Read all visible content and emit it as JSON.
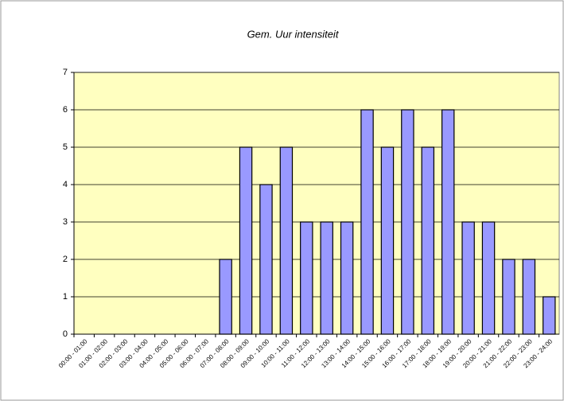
{
  "chart_data": {
    "type": "bar",
    "title": "Gem. Uur intensiteit",
    "categories": [
      "00:00 - 01:00",
      "01:00 - 02:00",
      "02:00 - 03:00",
      "03:00 - 04:00",
      "04:00 - 05:00",
      "05:00 - 06:00",
      "06:00 - 07:00",
      "07:00 - 08:00",
      "08:00 - 09:00",
      "09:00 - 10:00",
      "10:00 - 11:00",
      "11:00 - 12:00",
      "12:00 - 13:00",
      "13:00 - 14:00",
      "14:00 - 15:00",
      "15:00 - 16:00",
      "16:00 - 17:00",
      "17:00 - 18:00",
      "18:00 - 19:00",
      "19:00 - 20:00",
      "20:00 - 21:00",
      "21:00 - 22:00",
      "22:00 - 23:00",
      "23:00 - 24:00"
    ],
    "values": [
      0,
      0,
      0,
      0,
      0,
      0,
      0,
      2,
      5,
      4,
      5,
      3,
      3,
      3,
      6,
      5,
      6,
      5,
      6,
      3,
      3,
      2,
      2,
      1
    ],
    "color": "#9999ff",
    "plot_background": "#ffffc0",
    "ylim": [
      0,
      7
    ],
    "yticks": [
      0,
      1,
      2,
      3,
      4,
      5,
      6,
      7
    ],
    "grid": true
  }
}
